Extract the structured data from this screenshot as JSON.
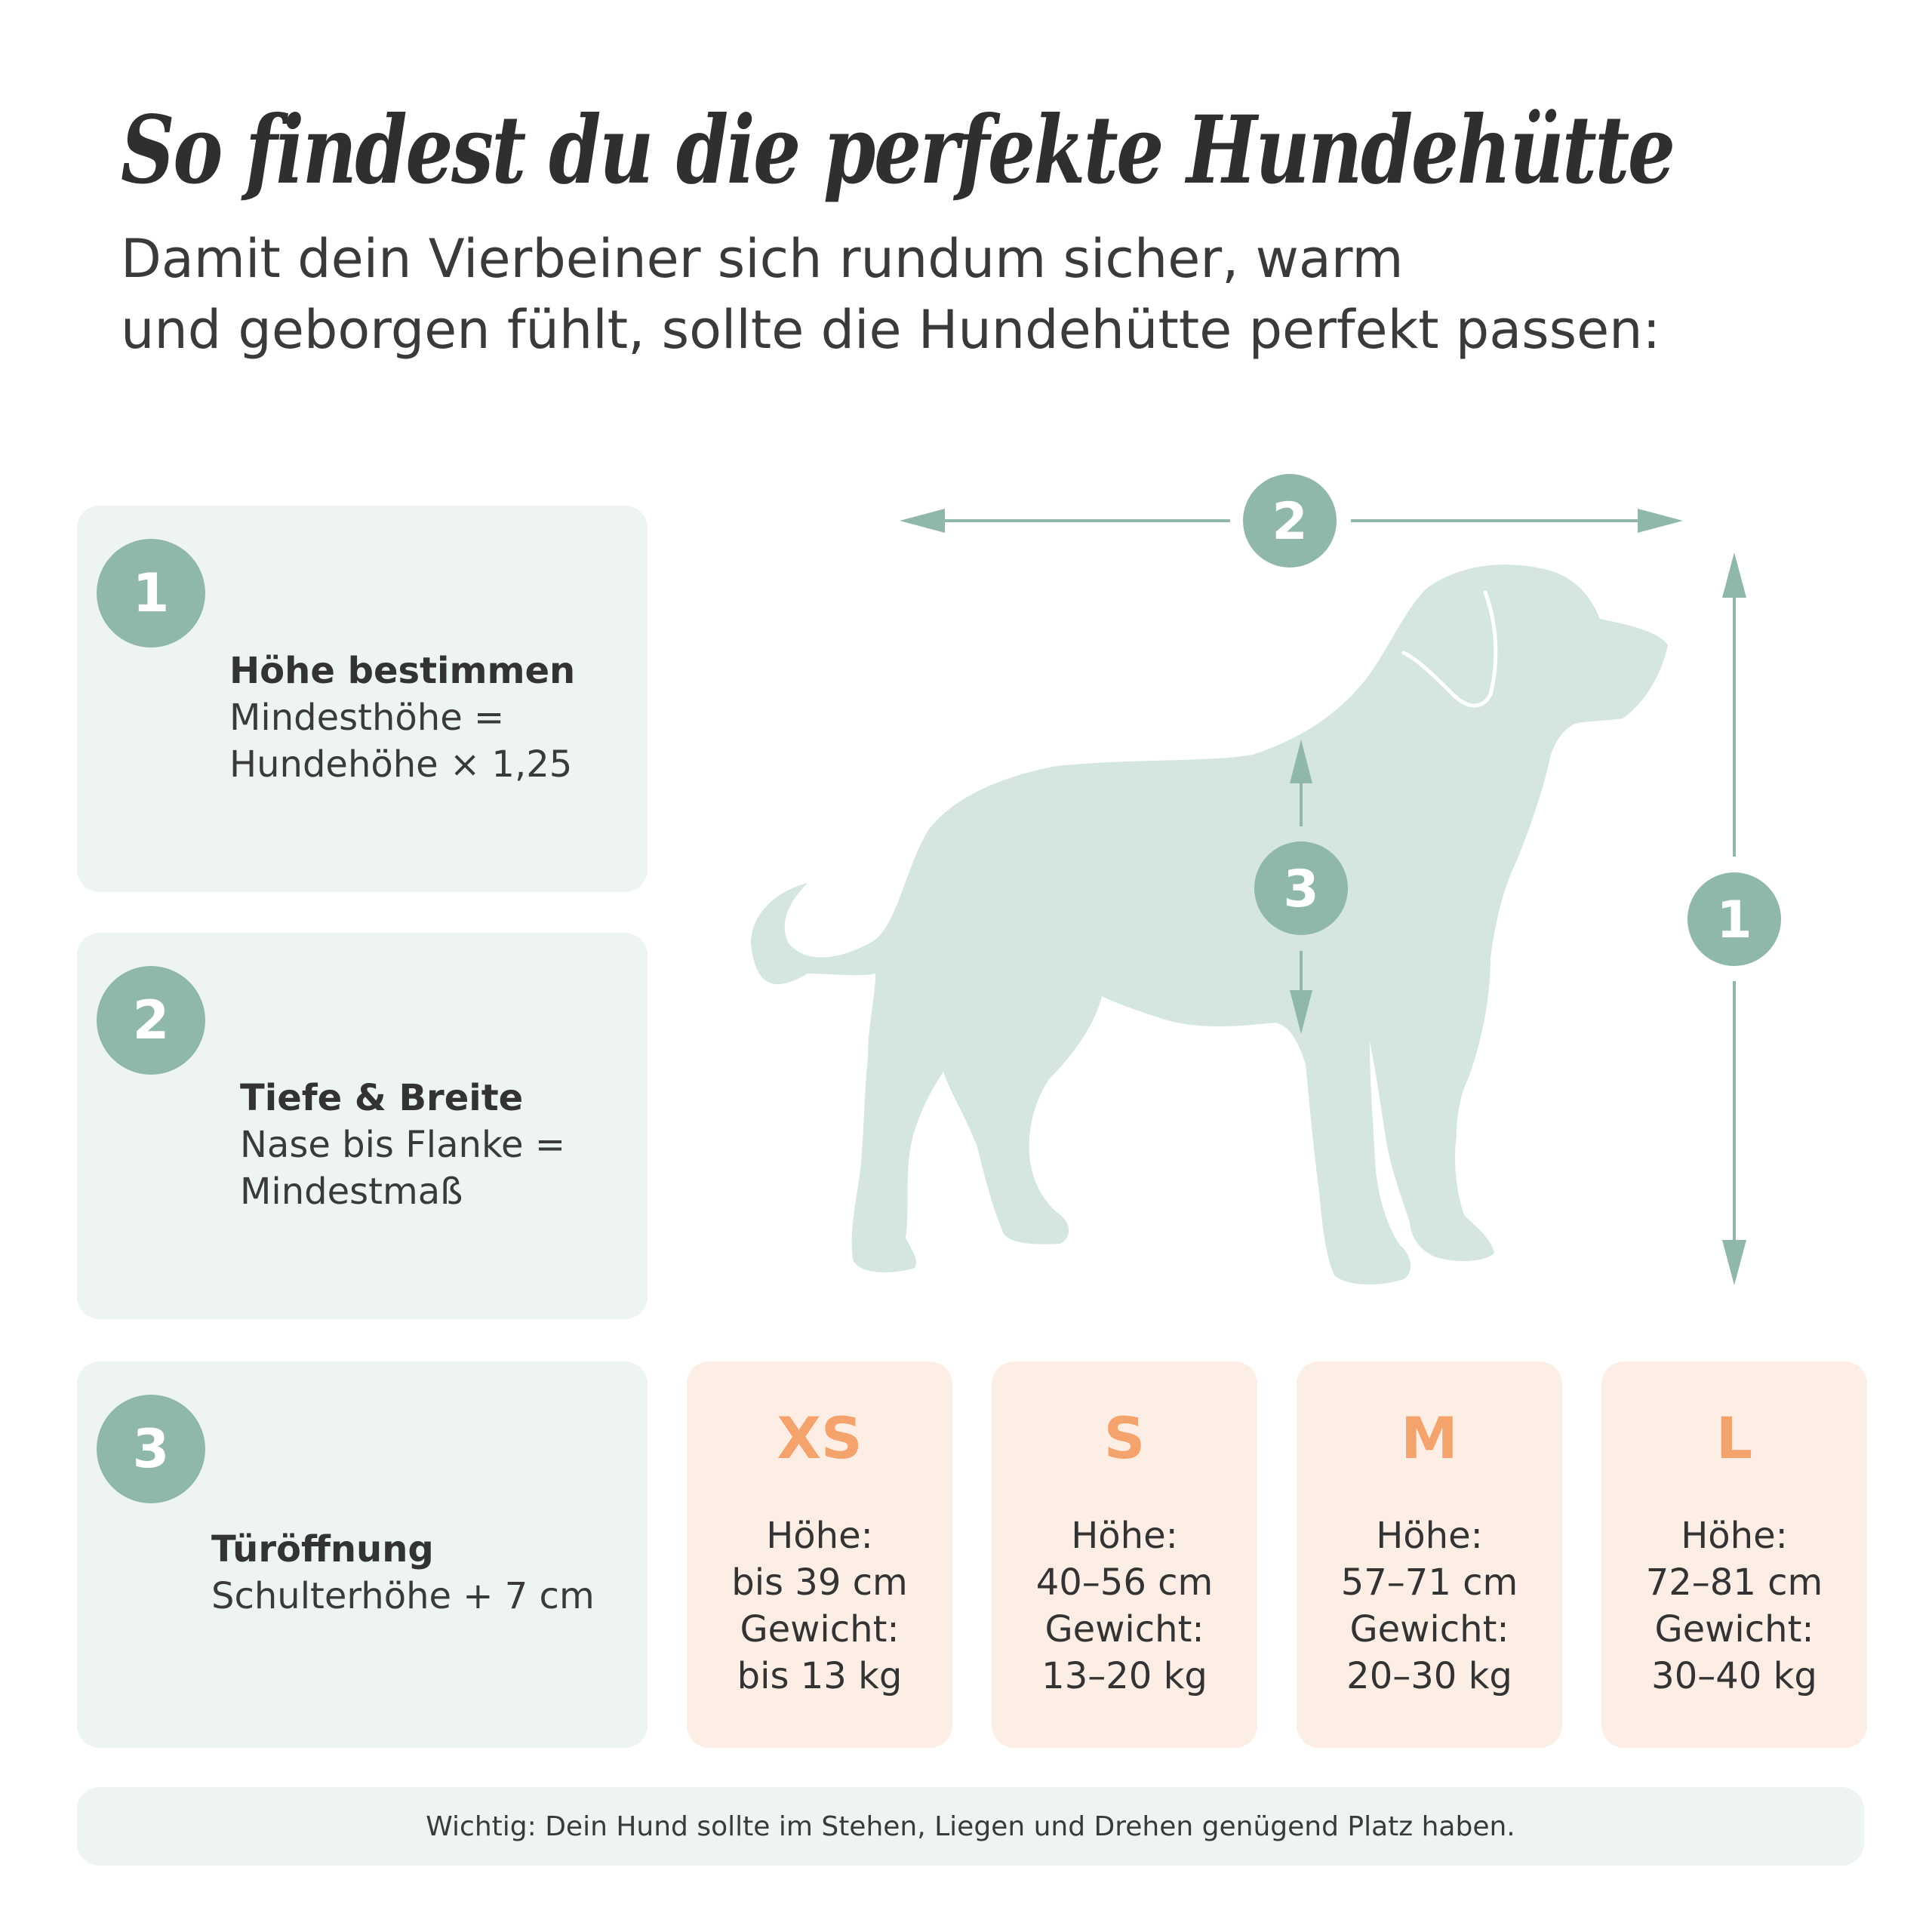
{
  "header": {
    "title": "So findest du die perfekte Hundehütte",
    "subtitle_line1": "Damit dein Vierbeiner sich rundum sicher, warm",
    "subtitle_line2": "und geborgen fühlt, sollte die Hundehütte perfekt passen:"
  },
  "steps": [
    {
      "number": "1",
      "heading": "Höhe bestimmen",
      "body": "Mindesthöhe =\nHundehöhe × 1,25"
    },
    {
      "number": "2",
      "heading": "Tiefe & Breite",
      "body": "Nase bis Flanke =\nMindestmaß"
    },
    {
      "number": "3",
      "heading": "Türöffnung",
      "body": "Schulterhöhe + 7 cm"
    }
  ],
  "diagram": {
    "markers": {
      "height": "1",
      "length": "2",
      "chest": "3"
    },
    "icon": "dog-silhouette-icon"
  },
  "sizes": [
    {
      "label": "XS",
      "height_label": "Höhe:",
      "height": "bis 39 cm",
      "weight_label": "Gewicht:",
      "weight": "bis 13 kg"
    },
    {
      "label": "S",
      "height_label": "Höhe:",
      "height": "40–56 cm",
      "weight_label": "Gewicht:",
      "weight": "13–20 kg"
    },
    {
      "label": "M",
      "height_label": "Höhe:",
      "height": "57–71 cm",
      "weight_label": "Gewicht:",
      "weight": "20–30 kg"
    },
    {
      "label": "L",
      "height_label": "Höhe:",
      "height": "72–81 cm",
      "weight_label": "Gewicht:",
      "weight": "30–40 kg"
    }
  ],
  "note": "Wichtig: Dein Hund sollte im Stehen, Liegen und Drehen genügend Platz haben.",
  "colors": {
    "accent_green": "#8fb8a8",
    "panel_green": "#eef4f1",
    "dog_fill": "#d4e6df",
    "size_panel": "#fdeee5",
    "size_label": "#f5a36d",
    "text_dark": "#333333"
  }
}
